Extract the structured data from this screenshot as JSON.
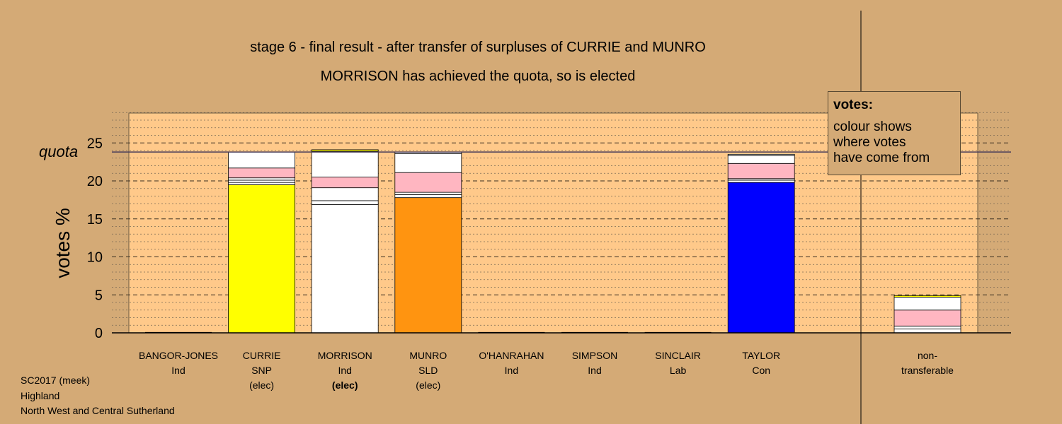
{
  "chart_data": {
    "type": "bar",
    "stacked": true,
    "title": "stage 6 - final result - after transfer of surpluses of CURRIE and MUNRO",
    "subtitle": "MORRISON has achieved the quota, so is elected",
    "ylabel": "votes %",
    "ylim": [
      0,
      29
    ],
    "y_ticks": [
      0,
      5,
      10,
      15,
      20,
      25
    ],
    "quota": {
      "label": "quota",
      "value": 23.8
    },
    "grid": "dashed horizontal",
    "candidates": [
      {
        "name": "BANGOR-JONES",
        "party": "Ind",
        "status": "",
        "total": 0,
        "segments": []
      },
      {
        "name": "CURRIE",
        "party": "SNP",
        "status": "(elec)",
        "total": 23.8,
        "segments": [
          {
            "value": 19.5,
            "color": "#ffff00"
          },
          {
            "value": 0.3,
            "color": "#ffffff"
          },
          {
            "value": 0.3,
            "color": "#ffffff"
          },
          {
            "value": 0.3,
            "color": "#ffffff"
          },
          {
            "value": 1.3,
            "color": "#ffb6c1"
          },
          {
            "value": 2.1,
            "color": "#ffffff"
          }
        ]
      },
      {
        "name": "MORRISON",
        "party": "Ind",
        "status": "(elec)",
        "total": 24.1,
        "segments": [
          {
            "value": 16.9,
            "color": "#ffffff"
          },
          {
            "value": 0.5,
            "color": "#ffffff"
          },
          {
            "value": 1.7,
            "color": "#ffffff"
          },
          {
            "value": 1.4,
            "color": "#ffb6c1"
          },
          {
            "value": 3.4,
            "color": "#ffffff"
          },
          {
            "value": 0.2,
            "color": "#ffff00"
          }
        ]
      },
      {
        "name": "MUNRO",
        "party": "SLD",
        "status": "(elec)",
        "total": 23.8,
        "segments": [
          {
            "value": 17.8,
            "color": "#ff9410"
          },
          {
            "value": 0.4,
            "color": "#ffffff"
          },
          {
            "value": 0.3,
            "color": "#ffffff"
          },
          {
            "value": 2.6,
            "color": "#ffb6c1"
          },
          {
            "value": 2.5,
            "color": "#ffffff"
          },
          {
            "value": 0.2,
            "color": "#ffffff"
          }
        ]
      },
      {
        "name": "O'HANRAHAN",
        "party": "Ind",
        "status": "",
        "total": 0,
        "segments": []
      },
      {
        "name": "SIMPSON",
        "party": "Ind",
        "status": "",
        "total": 0,
        "segments": []
      },
      {
        "name": "SINCLAIR",
        "party": "Lab",
        "status": "",
        "total": 0,
        "segments": []
      },
      {
        "name": "TAYLOR",
        "party": "Con",
        "status": "",
        "total": 23.5,
        "segments": [
          {
            "value": 19.8,
            "color": "#0000ff"
          },
          {
            "value": 0.3,
            "color": "#ffffff"
          },
          {
            "value": 0.2,
            "color": "#ffffff"
          },
          {
            "value": 2.0,
            "color": "#ffb6c1"
          },
          {
            "value": 1.0,
            "color": "#ffffff"
          },
          {
            "value": 0.2,
            "color": "#ffffff"
          }
        ]
      },
      {
        "name": "non-",
        "party": "transferable",
        "status": "",
        "total": 4.9,
        "segments": [
          {
            "value": 0.5,
            "color": "#ffffff"
          },
          {
            "value": 0.4,
            "color": "#ffffff"
          },
          {
            "value": 2.1,
            "color": "#ffb6c1"
          },
          {
            "value": 1.7,
            "color": "#ffffff"
          },
          {
            "value": 0.2,
            "color": "#ffff00"
          }
        ]
      }
    ],
    "legend": {
      "title": "votes:",
      "lines": [
        "colour shows",
        "where votes",
        "have come from"
      ],
      "placement": "top-right"
    }
  },
  "footer": {
    "line1": "SC2017 (meek)",
    "line2": "Highland",
    "line3": "North West and Central Sutherland"
  },
  "colors": {
    "background": "#d4aa76",
    "plot_area": "#ffc98a",
    "SNP": "#ffff00",
    "SLD": "#ff9410",
    "Con": "#0000ff",
    "Ind": "#ffffff",
    "Lab": "#ffb6c1"
  }
}
